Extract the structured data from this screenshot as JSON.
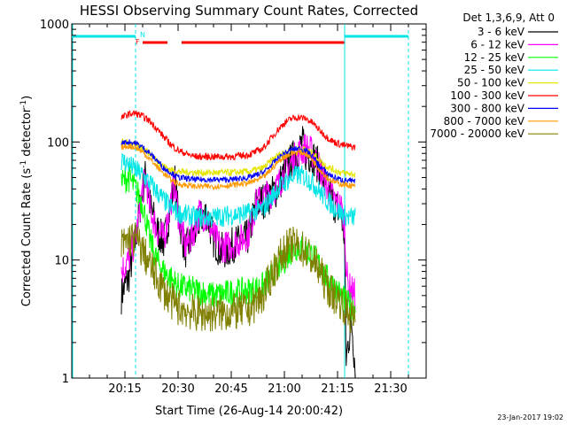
{
  "chart_data": {
    "type": "line",
    "title": "HESSI Observing Summary Count Rates, Corrected",
    "xlabel": "Start Time (26-Aug-14 20:00:42)",
    "ylabel": "Corrected Count Rate (s⁻¹ detector⁻¹)",
    "ylabel_parts": {
      "main": "Corrected Count Rate (s",
      "sup1": "-1",
      "mid": " detector",
      "sup2": "-1",
      "end": ")"
    },
    "y_scale": "log",
    "ylim": [
      1,
      1000
    ],
    "xlim_minutes": [
      0,
      100
    ],
    "x_ticks": [
      {
        "m": 15,
        "label": "20:15"
      },
      {
        "m": 30,
        "label": "20:30"
      },
      {
        "m": 45,
        "label": "20:45"
      },
      {
        "m": 60,
        "label": "21:00"
      },
      {
        "m": 75,
        "label": "21:15"
      },
      {
        "m": 90,
        "label": "21:30"
      }
    ],
    "y_ticks": [
      {
        "v": 1,
        "label": "1"
      },
      {
        "v": 10,
        "label": "10"
      },
      {
        "v": 100,
        "label": "100"
      },
      {
        "v": 1000,
        "label": "1000"
      }
    ],
    "legend_title": "Det 1,3,6,9, Att 0",
    "legend_position": "right",
    "footer_date": "23-Jan-2017 19:02",
    "flags": {
      "N_label": "N",
      "F_label": "F",
      "night_color": "#00e5e5",
      "flare_color": "#ff0000",
      "night_segments": [
        [
          0,
          18
        ],
        [
          77,
          95
        ]
      ],
      "flare_segments": [
        [
          20,
          27
        ],
        [
          31,
          77
        ]
      ],
      "night_markers": [
        18,
        77,
        95
      ],
      "marker_label_x": 19
    },
    "series": [
      {
        "name": "3 - 6 keV",
        "color": "#000000",
        "noise": 0.16,
        "points": [
          [
            14,
            5
          ],
          [
            15,
            6
          ],
          [
            16,
            7
          ],
          [
            18,
            15
          ],
          [
            20,
            40
          ],
          [
            21,
            55
          ],
          [
            22,
            30
          ],
          [
            24,
            18
          ],
          [
            26,
            14
          ],
          [
            27,
            20
          ],
          [
            28,
            30
          ],
          [
            29,
            50
          ],
          [
            30,
            25
          ],
          [
            32,
            12
          ],
          [
            34,
            15
          ],
          [
            36,
            22
          ],
          [
            38,
            25
          ],
          [
            40,
            15
          ],
          [
            42,
            12
          ],
          [
            44,
            12
          ],
          [
            46,
            14
          ],
          [
            48,
            14
          ],
          [
            50,
            16
          ],
          [
            52,
            30
          ],
          [
            55,
            33
          ],
          [
            58,
            40
          ],
          [
            60,
            55
          ],
          [
            62,
            70
          ],
          [
            64,
            85
          ],
          [
            65,
            100
          ],
          [
            66,
            80
          ],
          [
            68,
            75
          ],
          [
            70,
            60
          ],
          [
            72,
            40
          ],
          [
            73,
            35
          ],
          [
            74,
            30
          ],
          [
            76,
            25
          ],
          [
            77,
            15
          ],
          [
            77.4,
            1.4
          ],
          [
            78,
            2
          ],
          [
            79,
            3
          ],
          [
            80,
            1.2
          ]
        ]
      },
      {
        "name": "6 - 12 keV",
        "color": "#ff00ff",
        "noise": 0.14,
        "points": [
          [
            14,
            8
          ],
          [
            15,
            9
          ],
          [
            16,
            10
          ],
          [
            18,
            15
          ],
          [
            20,
            40
          ],
          [
            21,
            50
          ],
          [
            22,
            28
          ],
          [
            24,
            18
          ],
          [
            26,
            15
          ],
          [
            27,
            22
          ],
          [
            28,
            32
          ],
          [
            29,
            45
          ],
          [
            30,
            25
          ],
          [
            32,
            13
          ],
          [
            34,
            16
          ],
          [
            36,
            25
          ],
          [
            38,
            23
          ],
          [
            40,
            16
          ],
          [
            42,
            13
          ],
          [
            44,
            13
          ],
          [
            46,
            14
          ],
          [
            48,
            15
          ],
          [
            50,
            17
          ],
          [
            52,
            30
          ],
          [
            55,
            35
          ],
          [
            58,
            42
          ],
          [
            60,
            55
          ],
          [
            62,
            68
          ],
          [
            64,
            80
          ],
          [
            66,
            90
          ],
          [
            68,
            80
          ],
          [
            70,
            60
          ],
          [
            72,
            42
          ],
          [
            74,
            32
          ],
          [
            76,
            28
          ],
          [
            77,
            20
          ],
          [
            77.5,
            8
          ],
          [
            78,
            6
          ],
          [
            80,
            5
          ]
        ]
      },
      {
        "name": "12 - 25 keV",
        "color": "#00ff00",
        "noise": 0.12,
        "points": [
          [
            14,
            45
          ],
          [
            15,
            48
          ],
          [
            16,
            50
          ],
          [
            18,
            40
          ],
          [
            20,
            30
          ],
          [
            22,
            15
          ],
          [
            24,
            10
          ],
          [
            26,
            8
          ],
          [
            28,
            7
          ],
          [
            30,
            6
          ],
          [
            35,
            5.5
          ],
          [
            40,
            5
          ],
          [
            45,
            5.3
          ],
          [
            50,
            5.5
          ],
          [
            54,
            6
          ],
          [
            56,
            7
          ],
          [
            58,
            8.5
          ],
          [
            60,
            10
          ],
          [
            62,
            12
          ],
          [
            64,
            13
          ],
          [
            66,
            12
          ],
          [
            68,
            11
          ],
          [
            70,
            9
          ],
          [
            72,
            7
          ],
          [
            74,
            6
          ],
          [
            76,
            5
          ],
          [
            77,
            4.5
          ],
          [
            78,
            4.2
          ],
          [
            80,
            4
          ]
        ]
      },
      {
        "name": "25 - 50 keV",
        "color": "#00e5e5",
        "noise": 0.09,
        "points": [
          [
            14,
            70
          ],
          [
            16,
            65
          ],
          [
            18,
            58
          ],
          [
            20,
            52
          ],
          [
            22,
            45
          ],
          [
            24,
            38
          ],
          [
            26,
            32
          ],
          [
            28,
            28
          ],
          [
            30,
            25
          ],
          [
            35,
            23
          ],
          [
            40,
            23
          ],
          [
            45,
            24
          ],
          [
            50,
            25
          ],
          [
            54,
            27
          ],
          [
            56,
            33
          ],
          [
            58,
            40
          ],
          [
            60,
            45
          ],
          [
            62,
            50
          ],
          [
            64,
            53
          ],
          [
            66,
            50
          ],
          [
            68,
            45
          ],
          [
            70,
            38
          ],
          [
            72,
            32
          ],
          [
            74,
            28
          ],
          [
            76,
            25
          ],
          [
            77,
            24
          ],
          [
            78,
            23
          ],
          [
            80,
            23
          ]
        ]
      },
      {
        "name": "50 - 100 keV",
        "color": "#e5e500",
        "noise": 0.03,
        "points": [
          [
            14,
            100
          ],
          [
            16,
            98
          ],
          [
            18,
            95
          ],
          [
            20,
            88
          ],
          [
            22,
            80
          ],
          [
            24,
            70
          ],
          [
            26,
            62
          ],
          [
            28,
            58
          ],
          [
            30,
            56
          ],
          [
            35,
            55
          ],
          [
            40,
            55
          ],
          [
            45,
            55
          ],
          [
            50,
            56
          ],
          [
            54,
            60
          ],
          [
            56,
            68
          ],
          [
            58,
            76
          ],
          [
            60,
            82
          ],
          [
            62,
            86
          ],
          [
            64,
            88
          ],
          [
            66,
            86
          ],
          [
            68,
            80
          ],
          [
            70,
            70
          ],
          [
            72,
            62
          ],
          [
            74,
            58
          ],
          [
            76,
            55
          ],
          [
            78,
            54
          ],
          [
            80,
            53
          ]
        ]
      },
      {
        "name": "100 - 300 keV",
        "color": "#ff0000",
        "noise": 0.03,
        "points": [
          [
            14,
            160
          ],
          [
            16,
            172
          ],
          [
            18,
            175
          ],
          [
            20,
            165
          ],
          [
            22,
            150
          ],
          [
            24,
            130
          ],
          [
            26,
            110
          ],
          [
            28,
            95
          ],
          [
            30,
            85
          ],
          [
            33,
            78
          ],
          [
            35,
            75
          ],
          [
            40,
            75
          ],
          [
            45,
            75
          ],
          [
            50,
            78
          ],
          [
            54,
            88
          ],
          [
            56,
            105
          ],
          [
            58,
            125
          ],
          [
            60,
            145
          ],
          [
            62,
            158
          ],
          [
            64,
            162
          ],
          [
            66,
            158
          ],
          [
            68,
            145
          ],
          [
            70,
            125
          ],
          [
            72,
            110
          ],
          [
            74,
            100
          ],
          [
            76,
            95
          ],
          [
            78,
            92
          ],
          [
            80,
            90
          ]
        ]
      },
      {
        "name": "300 - 800 keV",
        "color": "#0000ff",
        "noise": 0.025,
        "points": [
          [
            14,
            98
          ],
          [
            16,
            100
          ],
          [
            18,
            98
          ],
          [
            20,
            90
          ],
          [
            22,
            80
          ],
          [
            24,
            70
          ],
          [
            26,
            60
          ],
          [
            28,
            55
          ],
          [
            30,
            50
          ],
          [
            35,
            48
          ],
          [
            40,
            48
          ],
          [
            45,
            48
          ],
          [
            50,
            50
          ],
          [
            54,
            55
          ],
          [
            56,
            62
          ],
          [
            58,
            72
          ],
          [
            60,
            80
          ],
          [
            62,
            86
          ],
          [
            64,
            88
          ],
          [
            66,
            85
          ],
          [
            68,
            75
          ],
          [
            70,
            62
          ],
          [
            72,
            55
          ],
          [
            74,
            50
          ],
          [
            76,
            48
          ],
          [
            78,
            47
          ],
          [
            80,
            46
          ]
        ]
      },
      {
        "name": "800 - 7000 keV",
        "color": "#ff9900",
        "noise": 0.025,
        "points": [
          [
            14,
            90
          ],
          [
            16,
            92
          ],
          [
            18,
            90
          ],
          [
            20,
            82
          ],
          [
            22,
            72
          ],
          [
            24,
            62
          ],
          [
            26,
            54
          ],
          [
            28,
            48
          ],
          [
            30,
            44
          ],
          [
            35,
            42
          ],
          [
            40,
            42
          ],
          [
            45,
            43
          ],
          [
            50,
            45
          ],
          [
            54,
            50
          ],
          [
            56,
            57
          ],
          [
            58,
            67
          ],
          [
            60,
            75
          ],
          [
            62,
            80
          ],
          [
            64,
            82
          ],
          [
            66,
            80
          ],
          [
            68,
            70
          ],
          [
            70,
            58
          ],
          [
            72,
            50
          ],
          [
            74,
            46
          ],
          [
            76,
            44
          ],
          [
            78,
            43
          ],
          [
            80,
            42
          ]
        ]
      },
      {
        "name": "7000 - 20000 keV",
        "color": "#808000",
        "noise": 0.16,
        "points": [
          [
            14,
            13
          ],
          [
            16,
            15
          ],
          [
            18,
            15
          ],
          [
            20,
            12
          ],
          [
            22,
            9
          ],
          [
            24,
            7
          ],
          [
            26,
            5.5
          ],
          [
            28,
            4.5
          ],
          [
            30,
            4
          ],
          [
            35,
            3.5
          ],
          [
            40,
            3.5
          ],
          [
            45,
            3.6
          ],
          [
            50,
            3.8
          ],
          [
            54,
            5
          ],
          [
            56,
            7
          ],
          [
            58,
            9.5
          ],
          [
            60,
            12
          ],
          [
            62,
            13.5
          ],
          [
            64,
            13
          ],
          [
            66,
            12
          ],
          [
            68,
            10
          ],
          [
            70,
            8
          ],
          [
            72,
            6
          ],
          [
            74,
            5
          ],
          [
            76,
            4.5
          ],
          [
            77,
            4
          ],
          [
            78,
            3.5
          ],
          [
            80,
            3
          ]
        ]
      }
    ]
  }
}
